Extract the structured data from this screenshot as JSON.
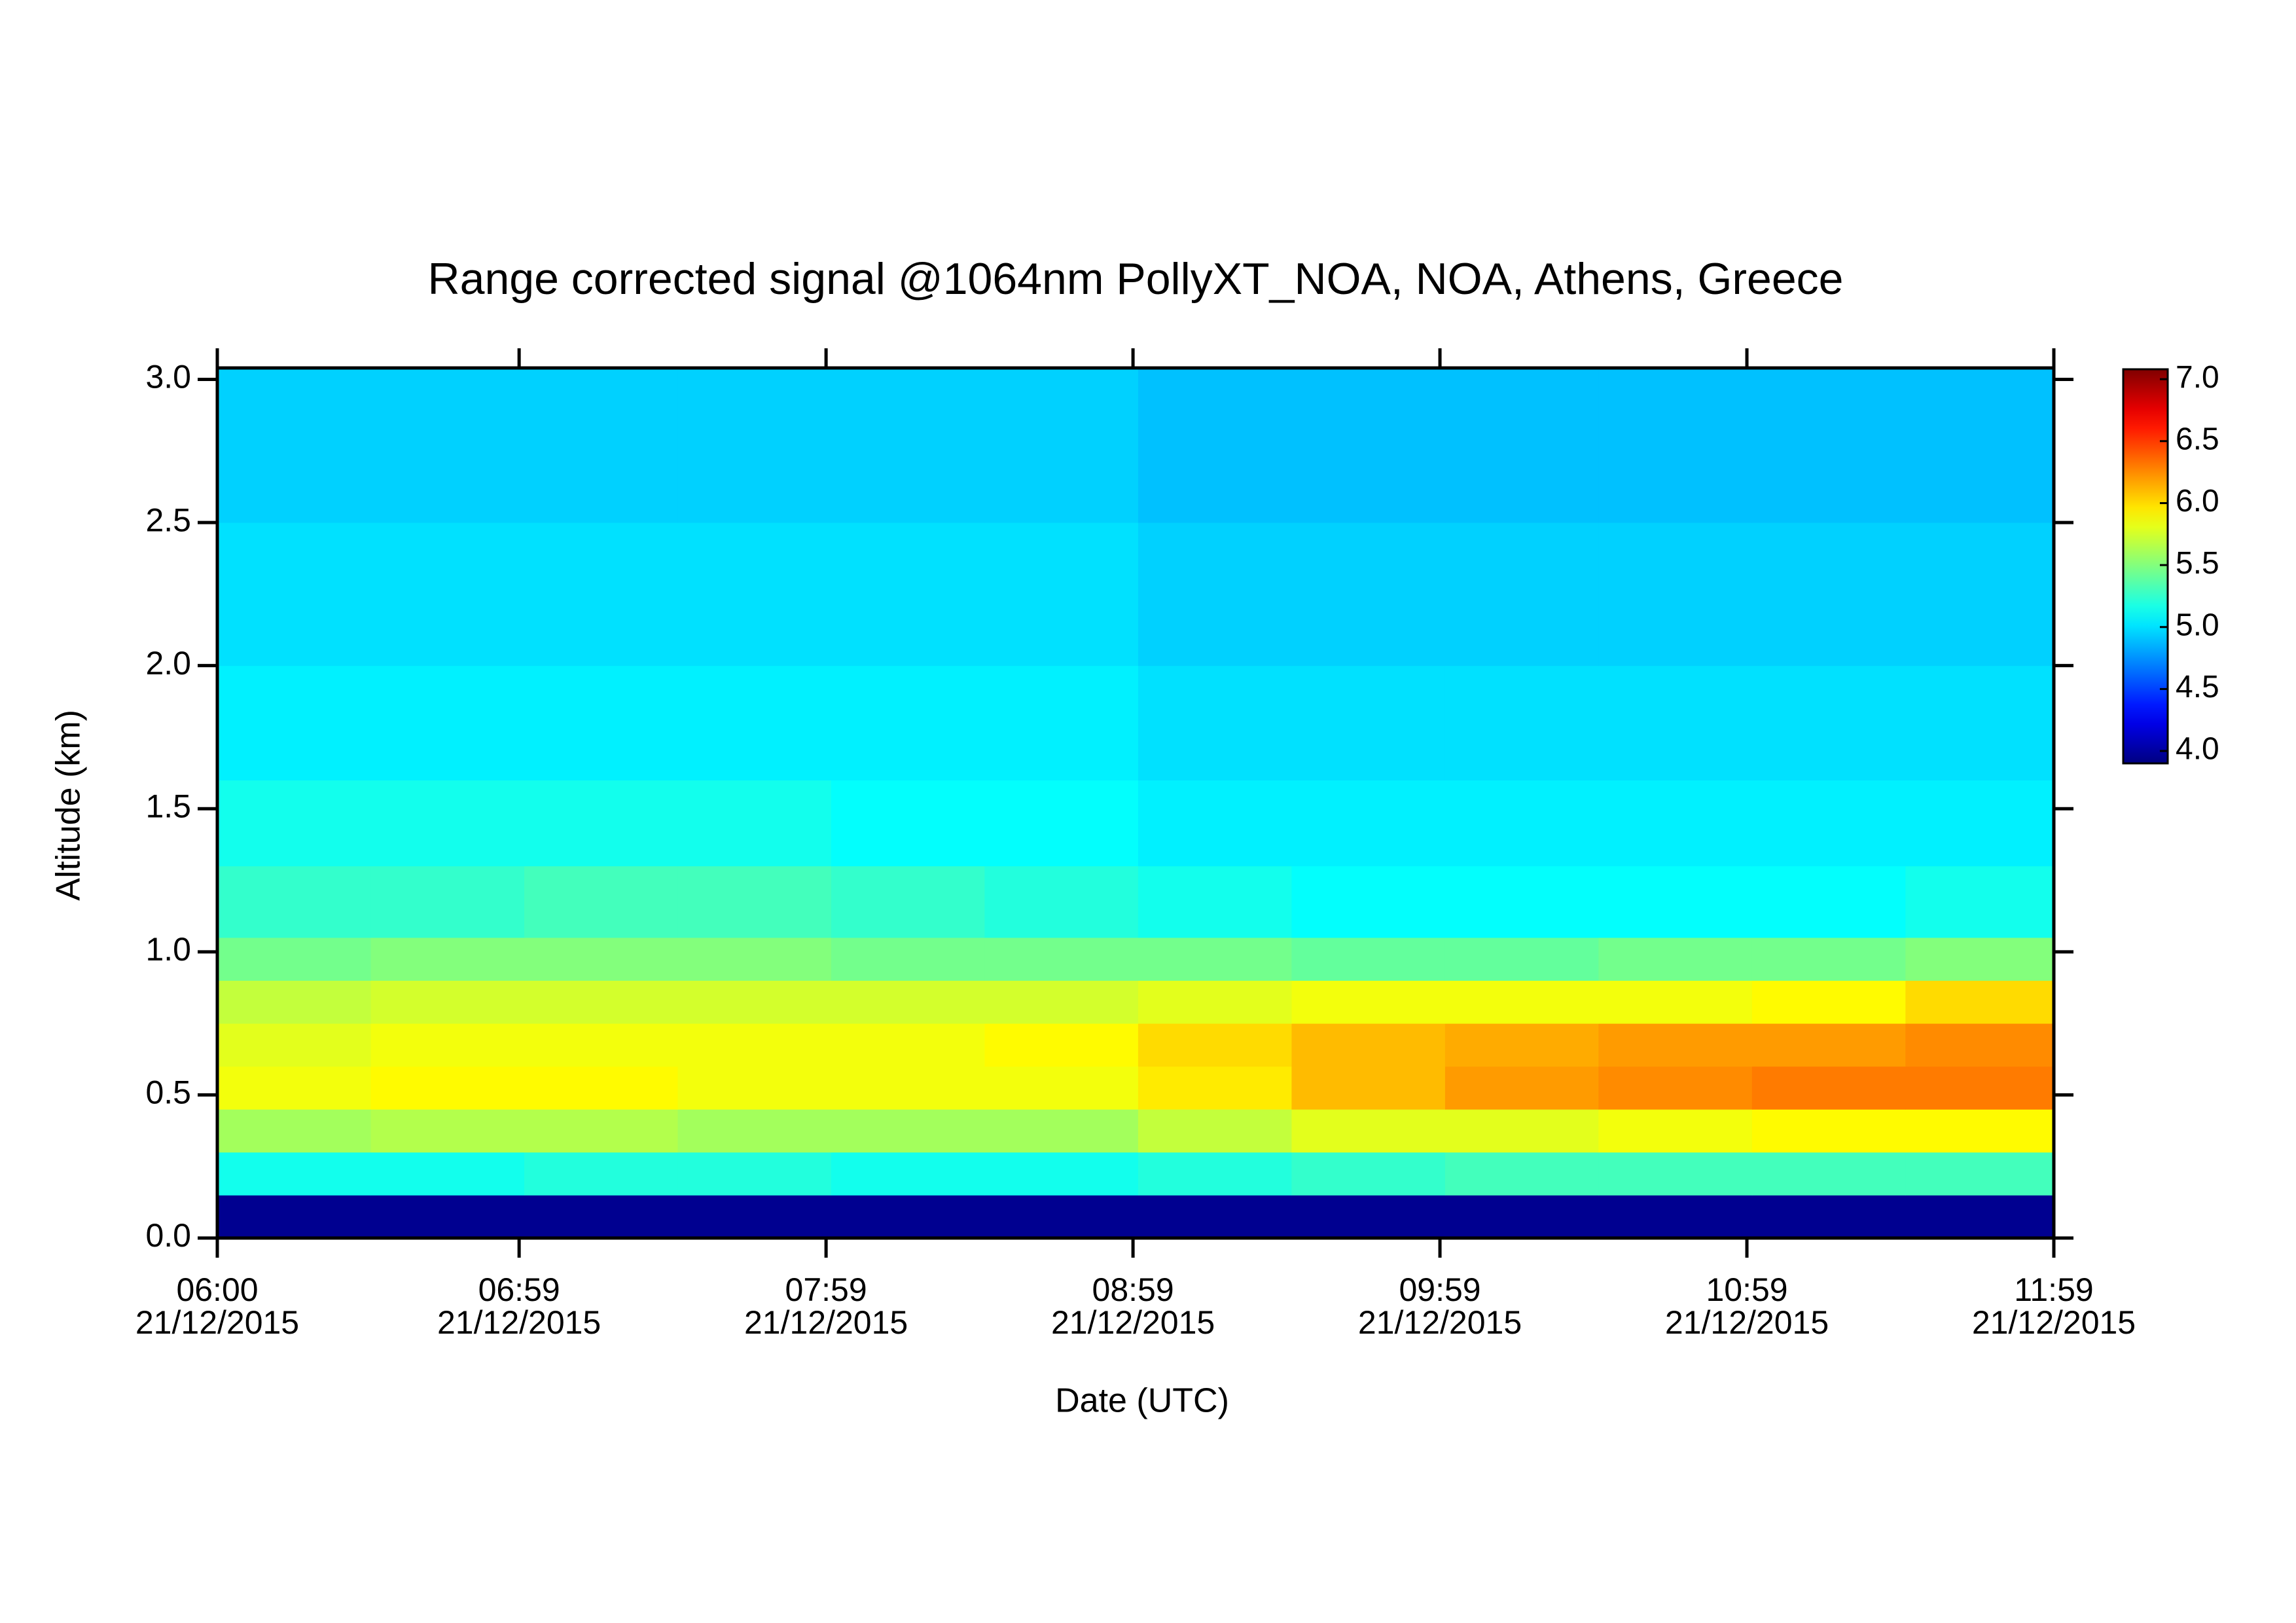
{
  "chart_data": {
    "type": "heatmap",
    "title": "Range corrected signal @1064nm  PollyXT_NOA, NOA, Athens, Greece",
    "xlabel": "Date (UTC)",
    "ylabel": "Altitude (km)",
    "xlim": [
      6,
      11.9833
    ],
    "xticks": [
      {
        "value": 6,
        "label": "06:00\n21/12/2015"
      },
      {
        "value": 6.9833,
        "label": "06:59\n21/12/2015"
      },
      {
        "value": 7.9833,
        "label": "07:59\n21/12/2015"
      },
      {
        "value": 8.9833,
        "label": "08:59\n21/12/2015"
      },
      {
        "value": 9.9833,
        "label": "09:59\n21/12/2015"
      },
      {
        "value": 10.9833,
        "label": "10:59\n21/12/2015"
      },
      {
        "value": 11.9833,
        "label": "11:59\n21/12/2015"
      }
    ],
    "ylim": [
      0,
      3.04
    ],
    "yticks": [
      {
        "value": 0,
        "label": "0.0"
      },
      0.5,
      {
        "value": 1,
        "label": "1.0"
      },
      1.5,
      {
        "value": 2,
        "label": "2.0"
      },
      2.5,
      {
        "value": 3,
        "label": "3.0"
      }
    ],
    "zlim": [
      3.9,
      7.08
    ],
    "zticks": [
      {
        "value": 4,
        "label": "4.0"
      },
      4.5,
      {
        "value": 5,
        "label": "5.0"
      },
      5.5,
      {
        "value": 6,
        "label": "6.0"
      },
      6.5,
      {
        "value": 7,
        "label": "7.0"
      }
    ],
    "colormap": "jet",
    "x_bins": [
      6,
      6.5,
      7,
      7.5,
      8,
      8.5,
      9,
      9.5,
      10,
      10.5,
      11,
      11.5,
      11.9833
    ],
    "y_bins": [
      0,
      0.15,
      0.3,
      0.45,
      0.6,
      0.75,
      0.9,
      1.05,
      1.3,
      1.6,
      2.0,
      2.5,
      3.04
    ],
    "values": [
      [
        3.95,
        3.95,
        3.95,
        3.95,
        3.95,
        3.95,
        3.95,
        3.95,
        3.95,
        3.95,
        3.95,
        3.95
      ],
      [
        5.15,
        5.15,
        5.2,
        5.2,
        5.15,
        5.15,
        5.2,
        5.25,
        5.3,
        5.3,
        5.3,
        5.3
      ],
      [
        5.6,
        5.65,
        5.65,
        5.6,
        5.6,
        5.6,
        5.7,
        5.8,
        5.8,
        5.85,
        5.9,
        5.9
      ],
      [
        5.85,
        5.9,
        5.9,
        5.85,
        5.85,
        5.85,
        5.95,
        6.1,
        6.2,
        6.25,
        6.3,
        6.3
      ],
      [
        5.8,
        5.85,
        5.85,
        5.85,
        5.85,
        5.9,
        6.0,
        6.1,
        6.15,
        6.2,
        6.2,
        6.25
      ],
      [
        5.7,
        5.75,
        5.75,
        5.75,
        5.75,
        5.75,
        5.8,
        5.85,
        5.85,
        5.85,
        5.9,
        6.0
      ],
      [
        5.45,
        5.5,
        5.5,
        5.5,
        5.45,
        5.45,
        5.45,
        5.4,
        5.4,
        5.45,
        5.45,
        5.5
      ],
      [
        5.25,
        5.25,
        5.3,
        5.3,
        5.25,
        5.2,
        5.15,
        5.1,
        5.1,
        5.1,
        5.1,
        5.15
      ],
      [
        5.15,
        5.15,
        5.15,
        5.15,
        5.1,
        5.1,
        5.05,
        5.05,
        5.05,
        5.05,
        5.05,
        5.05
      ],
      [
        5.05,
        5.05,
        5.05,
        5.05,
        5.05,
        5.05,
        5.0,
        5.0,
        5.0,
        5.0,
        5.0,
        5.0
      ],
      [
        5.0,
        5.0,
        5.0,
        5.0,
        5.0,
        5.0,
        4.95,
        4.95,
        4.95,
        4.95,
        4.95,
        4.95
      ],
      [
        4.95,
        4.95,
        4.95,
        4.95,
        4.95,
        4.95,
        4.9,
        4.9,
        4.9,
        4.9,
        4.9,
        4.9
      ]
    ]
  }
}
